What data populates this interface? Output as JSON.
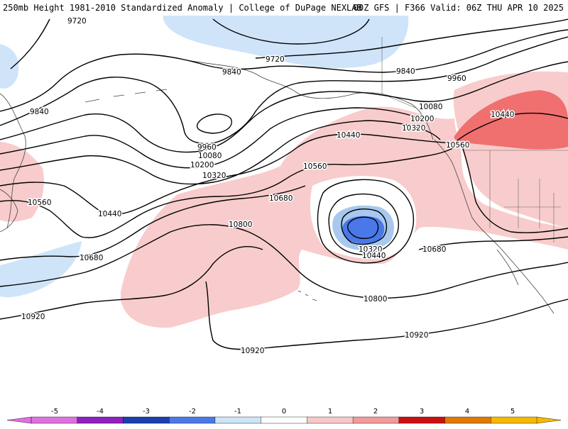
{
  "header": {
    "left_title": "250mb Height 1981-2010 Standardized Anomaly | College of DuPage NEXLAB",
    "right_title": "00Z GFS | F366 Valid: 06Z THU APR 10 2025"
  },
  "contour_labels": [
    "9720",
    "9720",
    "9840",
    "9840",
    "9840",
    "9960",
    "9960",
    "10080",
    "10080",
    "10200",
    "10200",
    "10320",
    "10320",
    "10320",
    "10440",
    "10440",
    "10440",
    "10440",
    "10560",
    "10560",
    "10560",
    "10680",
    "10680",
    "10680",
    "10800",
    "10800",
    "10920",
    "10920",
    "10920"
  ],
  "colorbar": {
    "ticks": [
      "-5",
      "-4",
      "-3",
      "-2",
      "-1",
      "0",
      "1",
      "2",
      "3",
      "4",
      "5"
    ],
    "colors": [
      "#e070e0",
      "#9020c0",
      "#1a3fb0",
      "#4a78e8",
      "#cfe4f8",
      "#ffffff",
      "#f8c8c8",
      "#f39a9a",
      "#cc1010",
      "#e07a00",
      "#f7b800"
    ]
  },
  "anomaly_colors": {
    "light_blue": "#cfe4f8",
    "medium_blue": "#a8c8ee",
    "dark_blue": "#4a78e8",
    "light_pink": "#f8cccc",
    "dark_pink": "#f07070"
  }
}
